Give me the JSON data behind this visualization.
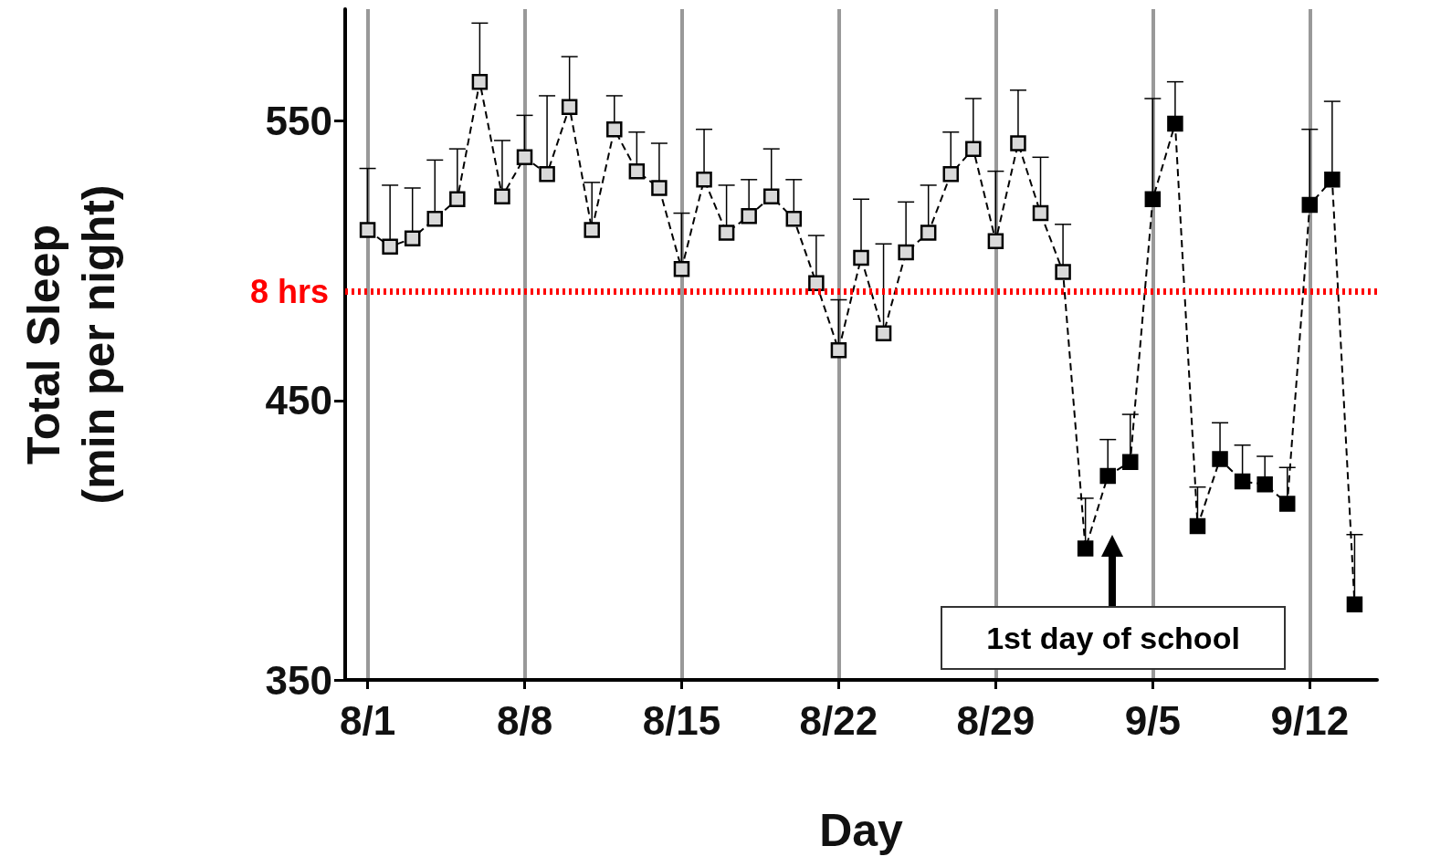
{
  "chart_data": {
    "type": "line",
    "xlabel": "Day",
    "ylabel": "Total Sleep\n(min per night)",
    "x": [
      "--08-01",
      "--08-02",
      "--08-03",
      "--08-04",
      "--08-05",
      "--08-06",
      "--08-07",
      "--08-08",
      "--08-09",
      "--08-10",
      "--08-11",
      "--08-12",
      "--08-13",
      "--08-14",
      "--08-15",
      "--08-16",
      "--08-17",
      "--08-18",
      "--08-19",
      "--08-20",
      "--08-21",
      "--08-22",
      "--08-23",
      "--08-24",
      "--08-25",
      "--08-26",
      "--08-27",
      "--08-28",
      "--08-29",
      "--08-30",
      "--08-31",
      "--09-01",
      "--09-02",
      "--09-03",
      "--09-04",
      "--09-05",
      "--09-06",
      "--09-07",
      "--09-08",
      "--09-09",
      "--09-10",
      "--09-11",
      "--09-12",
      "--09-13",
      "--09-14"
    ],
    "series": [
      {
        "color": "#000000",
        "values": [
          511,
          505,
          508,
          515,
          522,
          564,
          523,
          537,
          531,
          555,
          511,
          547,
          532,
          526,
          497,
          529,
          510,
          516,
          523,
          515,
          492,
          468,
          501,
          474,
          503,
          510,
          531,
          540,
          507,
          542,
          517,
          496,
          397,
          423,
          428,
          522,
          549,
          405,
          429,
          421,
          420,
          413,
          520,
          529,
          377
        ],
        "errors": [
          [
            511,
            533
          ],
          [
            505,
            527
          ],
          [
            508,
            526
          ],
          [
            515,
            536
          ],
          [
            522,
            540
          ],
          [
            564,
            585
          ],
          [
            523,
            543
          ],
          [
            537,
            552
          ],
          [
            531,
            559
          ],
          [
            555,
            573
          ],
          [
            511,
            528
          ],
          [
            547,
            559
          ],
          [
            532,
            546
          ],
          [
            526,
            542
          ],
          [
            497,
            517
          ],
          [
            529,
            547
          ],
          [
            510,
            527
          ],
          [
            516,
            529
          ],
          [
            523,
            540
          ],
          [
            515,
            529
          ],
          [
            492,
            509
          ],
          [
            468,
            486
          ],
          [
            501,
            522
          ],
          [
            474,
            506
          ],
          [
            503,
            521
          ],
          [
            510,
            527
          ],
          [
            531,
            546
          ],
          [
            540,
            558
          ],
          [
            507,
            532
          ],
          [
            542,
            561
          ],
          [
            517,
            537
          ],
          [
            496,
            513
          ],
          [
            397,
            415
          ],
          [
            423,
            436
          ],
          [
            428,
            445
          ],
          [
            522,
            558
          ],
          [
            549,
            564
          ],
          [
            405,
            419
          ],
          [
            429,
            442
          ],
          [
            421,
            434
          ],
          [
            420,
            430
          ],
          [
            413,
            426
          ],
          [
            520,
            547
          ],
          [
            529,
            557
          ],
          [
            377,
            402
          ]
        ],
        "colors": [
          "#d9d9d9",
          "#d9d9d9",
          "#d9d9d9",
          "#d9d9d9",
          "#d9d9d9",
          "#d9d9d9",
          "#d9d9d9",
          "#d9d9d9",
          "#d9d9d9",
          "#d9d9d9",
          "#d9d9d9",
          "#d9d9d9",
          "#d9d9d9",
          "#d9d9d9",
          "#d9d9d9",
          "#d9d9d9",
          "#d9d9d9",
          "#d9d9d9",
          "#d9d9d9",
          "#d9d9d9",
          "#d9d9d9",
          "#d9d9d9",
          "#d9d9d9",
          "#d9d9d9",
          "#d9d9d9",
          "#d9d9d9",
          "#d9d9d9",
          "#d9d9d9",
          "#d9d9d9",
          "#d9d9d9",
          "#d9d9d9",
          "#d9d9d9",
          "#000000",
          "#000000",
          "#000000",
          "#000000",
          "#000000",
          "#000000",
          "#000000",
          "#000000",
          "#000000",
          "#000000",
          "#000000",
          "#000000",
          "#000000"
        ]
      }
    ],
    "xlim": [
      "--07-31",
      "--09-15"
    ],
    "xticks": [
      {
        "value": "--08-01",
        "label": "8/1"
      },
      {
        "value": "--08-08",
        "label": "8/8"
      },
      {
        "value": "--08-15",
        "label": "8/15"
      },
      {
        "value": "--08-22",
        "label": "8/22"
      },
      {
        "value": "--08-29",
        "label": "8/29"
      },
      {
        "value": "--09-05",
        "label": "9/5"
      },
      {
        "value": "--09-12",
        "label": "9/12"
      }
    ],
    "ylim": [
      350,
      590
    ],
    "yticks": [
      350,
      450,
      550
    ],
    "ref_lines": [
      {
        "axis": "y",
        "value": 489,
        "label": "8 hrs",
        "color": "#ff0000",
        "line_style": "dotted"
      }
    ],
    "annotations": [
      "1st day of school"
    ],
    "grid": "x",
    "marker": "square",
    "line_style": "dashed"
  }
}
